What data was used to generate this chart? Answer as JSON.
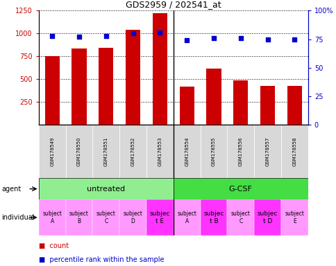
{
  "title": "GDS2959 / 202541_at",
  "samples": [
    "GSM178549",
    "GSM178550",
    "GSM178551",
    "GSM178552",
    "GSM178553",
    "GSM178554",
    "GSM178555",
    "GSM178556",
    "GSM178557",
    "GSM178558"
  ],
  "counts": [
    750,
    840,
    845,
    1040,
    1220,
    420,
    620,
    490,
    430,
    425
  ],
  "percentile_ranks": [
    78,
    77,
    78,
    80,
    81,
    74,
    76,
    76,
    75,
    75
  ],
  "ylim_left": [
    0,
    1250
  ],
  "ylim_right": [
    0,
    100
  ],
  "yticks_left": [
    250,
    500,
    750,
    1000,
    1250
  ],
  "yticks_right": [
    0,
    25,
    50,
    75,
    100
  ],
  "agent_labels": [
    "untreated",
    "G-CSF"
  ],
  "agent_color_light": "#90EE90",
  "agent_color_dark": "#44DD44",
  "individual_labels": [
    "subject\nA",
    "subject\nB",
    "subject\nC",
    "subject\nD",
    "subjec\nt E",
    "subject\nA",
    "subjec\nt B",
    "subject\nC",
    "subjec\nt D",
    "subject\nE"
  ],
  "individual_fontsize_normal": [
    5.5,
    5.5,
    5.5,
    5.5,
    6.5,
    5.5,
    6.5,
    5.5,
    6.5,
    5.5
  ],
  "individual_highlight": [
    4,
    6,
    8
  ],
  "individual_color_normal": "#FF99FF",
  "individual_color_highlight": "#FF33FF",
  "bar_color": "#CC0000",
  "scatter_color": "#0000CC",
  "bar_width": 0.55,
  "tick_label_color_left": "#CC0000",
  "tick_label_color_right": "#0000CC",
  "sample_bg": "#D8D8D8"
}
